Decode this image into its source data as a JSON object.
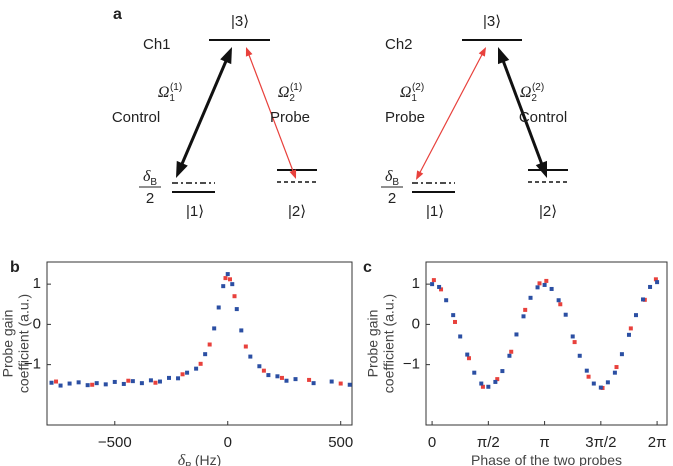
{
  "diagram": {
    "panel": "a",
    "channels": [
      {
        "name": "Ch1",
        "levels": [
          "|3⟩",
          "|1⟩",
          "|2⟩"
        ],
        "detuning": {
          "symbol": "δ",
          "sub": "B",
          "denominator": "2"
        },
        "transitions": [
          {
            "symbol": "Ω",
            "sub": "1",
            "sup": "(1)",
            "label": "Control",
            "color": "#111111"
          },
          {
            "symbol": "Ω",
            "sub": "2",
            "sup": "(1)",
            "label": "Probe",
            "color": "#e8413c"
          }
        ]
      },
      {
        "name": "Ch2",
        "levels": [
          "|3⟩",
          "|1⟩",
          "|2⟩"
        ],
        "detuning": {
          "symbol": "δ",
          "sub": "B",
          "denominator": "2"
        },
        "transitions": [
          {
            "symbol": "Ω",
            "sub": "1",
            "sup": "(2)",
            "label": "Probe",
            "color": "#e8413c"
          },
          {
            "symbol": "Ω",
            "sub": "2",
            "sup": "(2)",
            "label": "Control",
            "color": "#111111"
          }
        ]
      }
    ]
  },
  "chart_data": [
    {
      "type": "scatter",
      "panel": "b",
      "xlabel": {
        "symbol": "δ",
        "sub": "B",
        "text": "(Hz)"
      },
      "ylabel": [
        "Probe gain",
        "coefficient (a.u.)"
      ],
      "xlim": [
        -800,
        550
      ],
      "ylim": [
        -2.5,
        1.55
      ],
      "xticks": [
        {
          "value": -500,
          "label": "−500"
        },
        0,
        500
      ],
      "yticks": [
        {
          "value": -1,
          "label": "−1"
        },
        0,
        1
      ],
      "series": [
        {
          "color": "#e8413c",
          "x": [
            -760,
            -600,
            -440,
            -320,
            -200,
            -120,
            -80,
            -10,
            10,
            30,
            80,
            160,
            240,
            360,
            500
          ],
          "values": [
            -1.42,
            -1.5,
            -1.4,
            -1.45,
            -1.24,
            -0.98,
            -0.5,
            1.15,
            1.12,
            0.7,
            -0.55,
            -1.15,
            -1.33,
            -1.38,
            -1.47
          ]
        },
        {
          "color": "#2b4fa3",
          "x": [
            -780,
            -740,
            -700,
            -660,
            -620,
            -580,
            -540,
            -500,
            -460,
            -420,
            -380,
            -340,
            -300,
            -260,
            -220,
            -180,
            -140,
            -100,
            -60,
            -40,
            -20,
            0,
            20,
            40,
            60,
            100,
            140,
            180,
            220,
            260,
            300,
            380,
            460,
            540
          ],
          "values": [
            -1.45,
            -1.52,
            -1.47,
            -1.44,
            -1.51,
            -1.46,
            -1.49,
            -1.43,
            -1.48,
            -1.41,
            -1.46,
            -1.39,
            -1.42,
            -1.33,
            -1.34,
            -1.2,
            -1.1,
            -0.74,
            -0.1,
            0.42,
            0.95,
            1.25,
            1.0,
            0.38,
            -0.15,
            -0.8,
            -1.04,
            -1.26,
            -1.29,
            -1.4,
            -1.36,
            -1.46,
            -1.42,
            -1.5
          ]
        }
      ]
    },
    {
      "type": "scatter",
      "panel": "c",
      "xlabel": {
        "text": "Phase of the two probes"
      },
      "ylabel": [
        "Probe gain",
        "coefficient (a.u.)"
      ],
      "xlim": [
        -0.17,
        6.56
      ],
      "ylim": [
        -2.5,
        1.55
      ],
      "xticks": [
        0,
        {
          "value": 1.5708,
          "label": "π/2"
        },
        {
          "value": 3.1416,
          "label": "π"
        },
        {
          "value": 4.7124,
          "label": "3π/2"
        },
        {
          "value": 6.2832,
          "label": "2π"
        }
      ],
      "yticks": [
        {
          "value": -1,
          "label": "−1"
        },
        0,
        1
      ],
      "series": [
        {
          "color": "#e8413c",
          "x": [
            0.05,
            0.25,
            0.64,
            1.03,
            1.42,
            1.82,
            2.21,
            2.6,
            3.0,
            3.19,
            3.58,
            3.98,
            4.37,
            4.76,
            5.15,
            5.55,
            5.94,
            6.25
          ],
          "values": [
            1.1,
            0.87,
            0.06,
            -0.84,
            -1.55,
            -1.36,
            -0.68,
            0.36,
            1.02,
            1.08,
            0.5,
            -0.44,
            -1.3,
            -1.58,
            -1.06,
            -0.1,
            0.61,
            1.12
          ]
        },
        {
          "color": "#2b4fa3",
          "x": [
            0,
            0.196,
            0.393,
            0.589,
            0.785,
            0.982,
            1.178,
            1.374,
            1.571,
            1.767,
            1.963,
            2.16,
            2.356,
            2.553,
            2.749,
            2.945,
            3.142,
            3.338,
            3.534,
            3.731,
            3.927,
            4.123,
            4.32,
            4.516,
            4.712,
            4.909,
            5.105,
            5.301,
            5.498,
            5.694,
            5.89,
            6.087,
            6.283
          ],
          "values": [
            1.0,
            0.93,
            0.6,
            0.23,
            -0.3,
            -0.75,
            -1.2,
            -1.47,
            -1.55,
            -1.43,
            -1.16,
            -0.78,
            -0.25,
            0.2,
            0.66,
            0.92,
            0.98,
            0.88,
            0.6,
            0.24,
            -0.3,
            -0.78,
            -1.15,
            -1.47,
            -1.57,
            -1.44,
            -1.2,
            -0.74,
            -0.26,
            0.23,
            0.62,
            0.93,
            1.05
          ]
        }
      ]
    }
  ]
}
